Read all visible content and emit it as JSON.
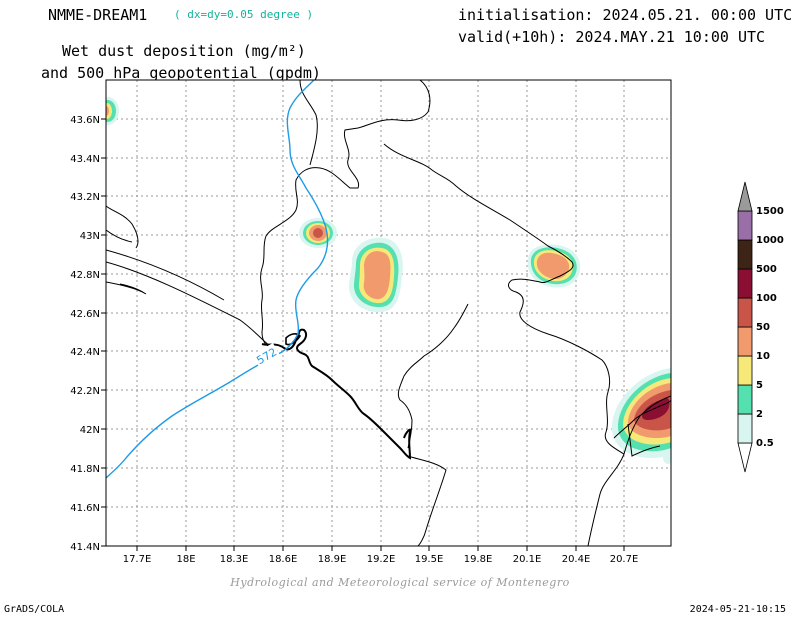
{
  "header": {
    "model": "NMME-DREAM1",
    "resolution": "( dx=dy=0.05 degree )",
    "initialisation": "initialisation: 2024.05.21. 00:00 UTC",
    "valid": "valid(+10h): 2024.MAY.21 10:00 UTC",
    "field_line1": "Wet dust deposition (mg/m²)",
    "field_line2": "and 500 hPa geopotential (gpdm)"
  },
  "map": {
    "lat_labels": [
      "43.6N",
      "43.4N",
      "43.2N",
      "43N",
      "42.8N",
      "42.6N",
      "42.4N",
      "42.2N",
      "42N",
      "41.8N",
      "41.6N",
      "41.4N"
    ],
    "lon_labels": [
      "17.7E",
      "18E",
      "18.3E",
      "18.6E",
      "18.9E",
      "19.2E",
      "19.5E",
      "19.8E",
      "20.1E",
      "20.4E",
      "20.7E"
    ],
    "contour_label": "572",
    "contour_color": "#1e9be6",
    "grid": true
  },
  "legend": {
    "levels": [
      "0.5",
      "2",
      "5",
      "10",
      "50",
      "100",
      "500",
      "1000",
      "1500"
    ],
    "colors": [
      "#d8f5f0",
      "#55e0b0",
      "#f7e87a",
      "#f09a6e",
      "#c95548",
      "#8a0f33",
      "#3d2416",
      "#9a6fa8",
      "#9a9a9a"
    ]
  },
  "footer": {
    "credit": "Hydrological and Meteorological service of Montenegro",
    "software": "GrADS/COLA",
    "timestamp": "2024-05-21-10:15"
  }
}
